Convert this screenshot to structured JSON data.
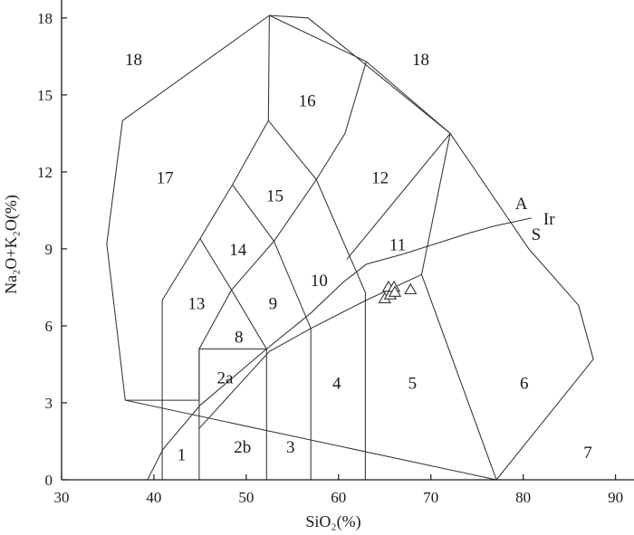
{
  "chart_data": {
    "type": "scatter",
    "title": "",
    "xlabel": "SiO₂(%)",
    "ylabel": "Na₂O+K₂O(%)",
    "xlim": [
      30,
      92
    ],
    "ylim": [
      0,
      18.7
    ],
    "xticks": [
      30,
      40,
      50,
      60,
      70,
      80,
      90
    ],
    "yticks": [
      0,
      3,
      6,
      9,
      12,
      15,
      18
    ],
    "grid": false,
    "samples": {
      "marker": "triangle-open",
      "points": [
        {
          "x": 65.0,
          "y": 7.05
        },
        {
          "x": 65.4,
          "y": 7.5
        },
        {
          "x": 65.6,
          "y": 7.2
        },
        {
          "x": 66.0,
          "y": 7.5
        },
        {
          "x": 66.1,
          "y": 7.3
        },
        {
          "x": 67.8,
          "y": 7.4
        }
      ]
    },
    "boundaries": [
      {
        "name": "outer-envelope",
        "closed": true,
        "points": [
          [
            36.9,
            3.1
          ],
          [
            34.9,
            9.2
          ],
          [
            36.6,
            14.0
          ],
          [
            52.5,
            18.1
          ],
          [
            56.7,
            18.0
          ],
          [
            72.1,
            13.5
          ],
          [
            80.6,
            9.0
          ],
          [
            86.0,
            6.8
          ],
          [
            87.6,
            4.7
          ],
          [
            77.1,
            0
          ]
        ]
      },
      {
        "name": "line-a",
        "points": [
          [
            40.9,
            0
          ],
          [
            40.9,
            7.0
          ],
          [
            45.0,
            9.4
          ],
          [
            48.5,
            11.5
          ],
          [
            52.4,
            14.0
          ],
          [
            52.5,
            18.1
          ]
        ]
      },
      {
        "name": "line-b",
        "points": [
          [
            36.9,
            3.1
          ],
          [
            44.9,
            3.1
          ],
          [
            44.9,
            5.1
          ]
        ]
      },
      {
        "name": "line-c",
        "points": [
          [
            44.9,
            0
          ],
          [
            44.9,
            5.1
          ],
          [
            52.2,
            5.1
          ],
          [
            52.2,
            0
          ]
        ]
      },
      {
        "name": "line-d",
        "points": [
          [
            44.9,
            5.1
          ],
          [
            48.4,
            7.4
          ],
          [
            52.2,
            5.1
          ]
        ]
      },
      {
        "name": "line-e",
        "points": [
          [
            48.4,
            7.4
          ],
          [
            45.0,
            9.4
          ]
        ]
      },
      {
        "name": "line-f",
        "points": [
          [
            48.4,
            7.4
          ],
          [
            53.0,
            9.3
          ],
          [
            48.5,
            11.5
          ]
        ]
      },
      {
        "name": "line-g",
        "points": [
          [
            53.0,
            9.3
          ],
          [
            57.6,
            11.7
          ],
          [
            52.4,
            14.0
          ]
        ]
      },
      {
        "name": "line-h",
        "points": [
          [
            53.0,
            9.3
          ],
          [
            57.0,
            5.9
          ],
          [
            57.0,
            0
          ]
        ]
      },
      {
        "name": "line-i",
        "points": [
          [
            44.9,
            2.0
          ],
          [
            52.5,
            5.0
          ],
          [
            57.0,
            5.9
          ],
          [
            63.0,
            7.0
          ],
          [
            69.0,
            8.0
          ],
          [
            69.0,
            8.0
          ],
          [
            77.1,
            0
          ]
        ]
      },
      {
        "name": "line-j",
        "points": [
          [
            57.6,
            11.7
          ],
          [
            60.7,
            13.5
          ],
          [
            63.0,
            16.3
          ],
          [
            52.5,
            18.1
          ]
        ]
      },
      {
        "name": "line-k",
        "points": [
          [
            57.6,
            11.7
          ],
          [
            62.9,
            7.3
          ],
          [
            62.9,
            0
          ]
        ]
      },
      {
        "name": "line-l",
        "points": [
          [
            60.9,
            8.6
          ],
          [
            72.1,
            13.5
          ],
          [
            69.0,
            8.0
          ]
        ]
      },
      {
        "name": "line-m",
        "points": [
          [
            63.0,
            16.3
          ],
          [
            72.1,
            13.5
          ]
        ]
      },
      {
        "name": "line-n",
        "points": [
          [
            39.3,
            0
          ],
          [
            41.0,
            1.2
          ],
          [
            45.0,
            2.9
          ],
          [
            52.2,
            5.1
          ],
          [
            57.0,
            6.5
          ],
          [
            60.5,
            7.7
          ],
          [
            63.0,
            8.4
          ],
          [
            67.0,
            8.8
          ],
          [
            74.0,
            9.6
          ],
          [
            77.0,
            9.9
          ],
          [
            80.9,
            10.2
          ]
        ]
      }
    ],
    "field_labels": [
      {
        "text": "18",
        "x": 37.8,
        "y": 16.4
      },
      {
        "text": "18",
        "x": 68.9,
        "y": 16.4
      },
      {
        "text": "16",
        "x": 56.6,
        "y": 14.8
      },
      {
        "text": "17",
        "x": 41.2,
        "y": 11.8
      },
      {
        "text": "15",
        "x": 53.1,
        "y": 11.1
      },
      {
        "text": "12",
        "x": 64.5,
        "y": 11.8
      },
      {
        "text": "14",
        "x": 49.1,
        "y": 9.0
      },
      {
        "text": "11",
        "x": 66.4,
        "y": 9.2
      },
      {
        "text": "10",
        "x": 57.9,
        "y": 7.8
      },
      {
        "text": "13",
        "x": 44.6,
        "y": 6.9
      },
      {
        "text": "9",
        "x": 52.9,
        "y": 6.9
      },
      {
        "text": "8",
        "x": 49.2,
        "y": 5.6
      },
      {
        "text": "2a",
        "x": 47.7,
        "y": 4.0
      },
      {
        "text": "4",
        "x": 59.8,
        "y": 3.8
      },
      {
        "text": "5",
        "x": 68.0,
        "y": 3.8
      },
      {
        "text": "6",
        "x": 80.1,
        "y": 3.8
      },
      {
        "text": "1",
        "x": 43.0,
        "y": 1.0
      },
      {
        "text": "2b",
        "x": 49.6,
        "y": 1.3
      },
      {
        "text": "3",
        "x": 54.8,
        "y": 1.3
      },
      {
        "text": "7",
        "x": 87.0,
        "y": 1.1
      }
    ],
    "curve_labels": [
      {
        "text": "A",
        "x": 79.8,
        "y": 10.8
      },
      {
        "text": "Ir",
        "x": 82.8,
        "y": 10.2
      },
      {
        "text": "S",
        "x": 81.4,
        "y": 9.6
      }
    ]
  }
}
